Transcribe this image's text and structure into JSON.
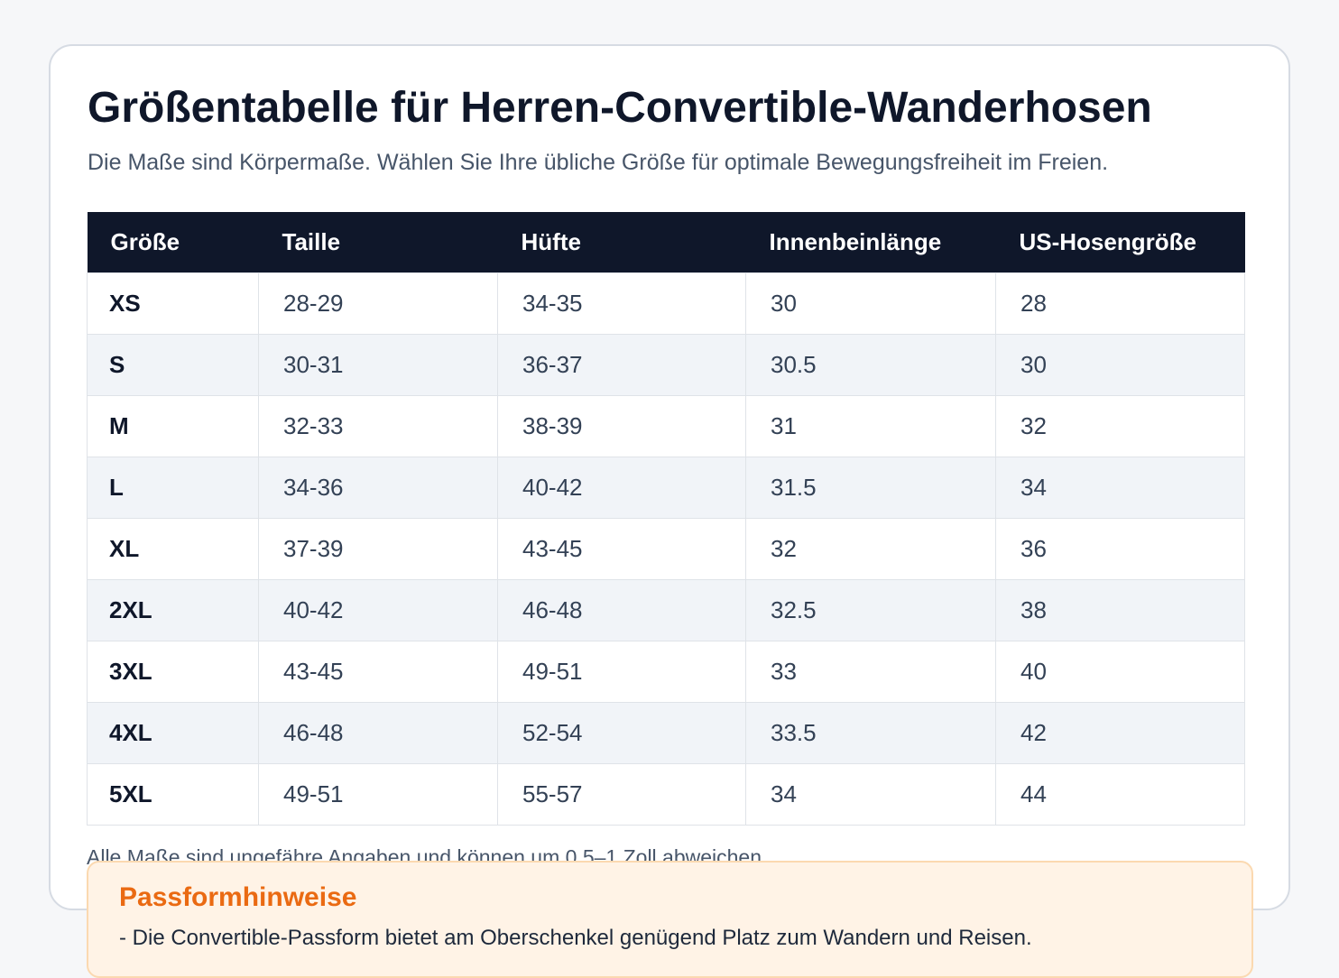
{
  "header": {
    "title": "Größentabelle für Herren-Convertible-Wanderhosen",
    "subtitle": "Die Maße sind Körpermaße. Wählen Sie Ihre übliche Größe für optimale Bewegungsfreiheit im Freien."
  },
  "table": {
    "columns": [
      "Größe",
      "Taille",
      "Hüfte",
      "Innenbeinlänge",
      "US-Hosengröße"
    ],
    "rows": [
      [
        "XS",
        "28-29",
        "34-35",
        "30",
        "28"
      ],
      [
        "S",
        "30-31",
        "36-37",
        "30.5",
        "30"
      ],
      [
        "M",
        "32-33",
        "38-39",
        "31",
        "32"
      ],
      [
        "L",
        "34-36",
        "40-42",
        "31.5",
        "34"
      ],
      [
        "XL",
        "37-39",
        "43-45",
        "32",
        "36"
      ],
      [
        "2XL",
        "40-42",
        "46-48",
        "32.5",
        "38"
      ],
      [
        "3XL",
        "43-45",
        "49-51",
        "33",
        "40"
      ],
      [
        "4XL",
        "46-48",
        "52-54",
        "33.5",
        "42"
      ],
      [
        "5XL",
        "49-51",
        "55-57",
        "34",
        "44"
      ]
    ]
  },
  "footnote": "Alle Maße sind ungefähre Angaben und können um 0,5–1 Zoll abweichen.",
  "fit_notes": {
    "title": "Passformhinweise",
    "items": [
      "- Die Convertible-Passform bietet am Oberschenkel genügend Platz zum Wandern und Reisen."
    ]
  },
  "colors": {
    "header_bg": "#0f172a",
    "accent": "#ea6a12",
    "fit_bg": "#fff3e6"
  }
}
